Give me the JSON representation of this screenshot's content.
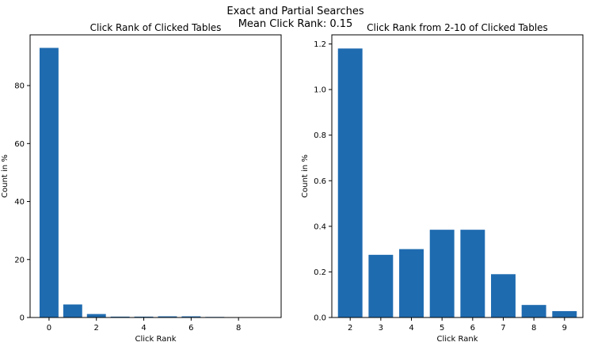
{
  "figure": {
    "title": "Exact and Partial Searches",
    "subtitle": "Mean Click Rank: 0.15"
  },
  "colors": {
    "bar": "#1f6bb0",
    "axis": "#000000",
    "background": "#ffffff"
  },
  "chart_data": [
    {
      "type": "bar",
      "title": "Click Rank of Clicked Tables",
      "xlabel": "Click Rank",
      "ylabel": "Count in %",
      "categories": [
        0,
        1,
        2,
        3,
        4,
        5,
        6,
        7,
        8
      ],
      "values": [
        93.0,
        4.5,
        1.2,
        0.3,
        0.3,
        0.4,
        0.4,
        0.2,
        0.05
      ],
      "xticks": [
        "0",
        "2",
        "4",
        "6",
        "8"
      ],
      "yticks": [
        "0",
        "20",
        "40",
        "60",
        "80"
      ],
      "xlim": [
        -0.8,
        9.8
      ],
      "ylim": [
        0,
        97.5
      ],
      "grid": false
    },
    {
      "type": "bar",
      "title": "Click Rank from 2-10 of Clicked Tables",
      "xlabel": "Click Rank",
      "ylabel": "Count in %",
      "categories": [
        2,
        3,
        4,
        5,
        6,
        7,
        8,
        9
      ],
      "values": [
        1.18,
        0.275,
        0.3,
        0.385,
        0.385,
        0.19,
        0.055,
        0.028
      ],
      "xticks": [
        "2",
        "3",
        "4",
        "5",
        "6",
        "7",
        "8",
        "9"
      ],
      "yticks": [
        "0.0",
        "0.2",
        "0.4",
        "0.6",
        "0.8",
        "1.0",
        "1.2"
      ],
      "xlim": [
        1.4,
        9.6
      ],
      "ylim": [
        0,
        1.24
      ],
      "grid": false
    }
  ]
}
